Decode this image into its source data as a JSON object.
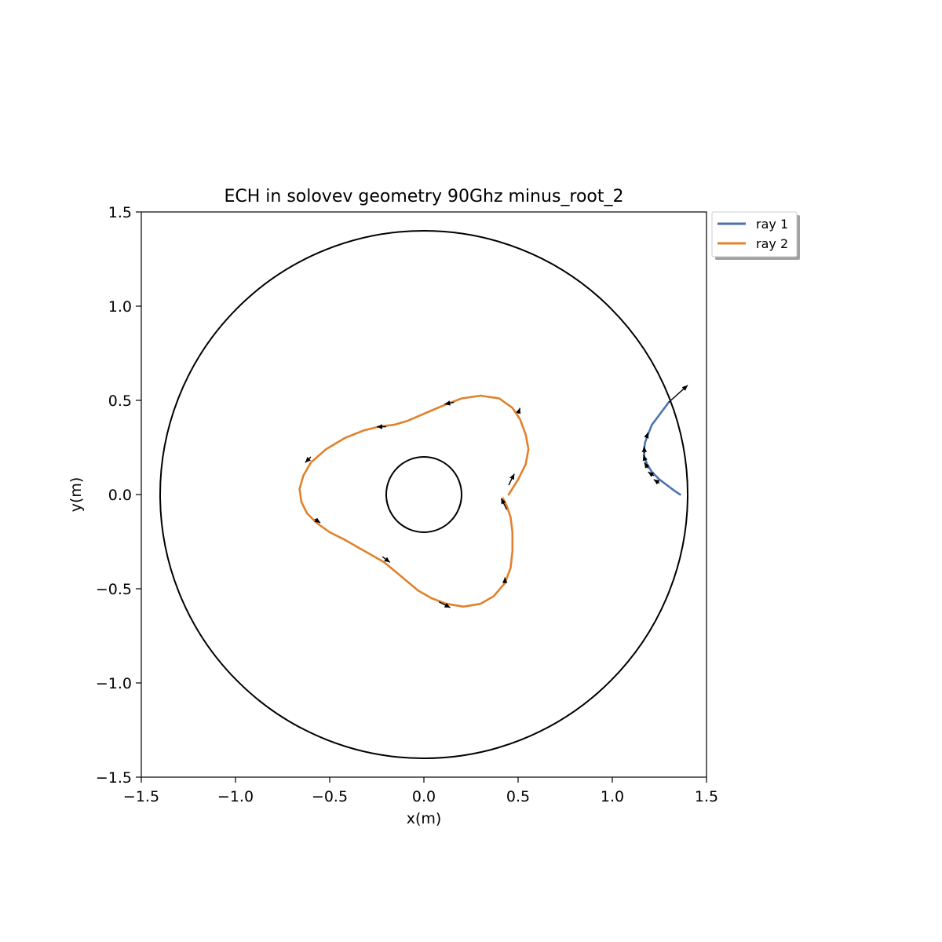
{
  "chart_data": {
    "type": "line",
    "title": "ECH in solovev geometry 90Ghz  minus_root_2",
    "xlabel": "x(m)",
    "ylabel": "y(m)",
    "xlim": [
      -1.5,
      1.5
    ],
    "ylim": [
      -1.5,
      1.5
    ],
    "xticks": [
      -1.5,
      -1.0,
      -0.5,
      0.0,
      0.5,
      1.0,
      1.5
    ],
    "yticks": [
      -1.5,
      -1.0,
      -0.5,
      0.0,
      0.5,
      1.0,
      1.5
    ],
    "xtick_labels": [
      "−1.5",
      "−1.0",
      "−0.5",
      "0.0",
      "0.5",
      "1.0",
      "1.5"
    ],
    "ytick_labels": [
      "−1.5",
      "−1.0",
      "−0.5",
      "0.0",
      "0.5",
      "1.0",
      "1.5"
    ],
    "grid": false,
    "legend_placement": "outside-top-right",
    "boundary_circles": [
      {
        "cx": 0.0,
        "cy": 0.0,
        "r": 1.4,
        "color": "#000000"
      },
      {
        "cx": 0.0,
        "cy": 0.0,
        "r": 0.2,
        "color": "#000000"
      }
    ],
    "series": [
      {
        "name": "ray 1",
        "color": "#4c72b0",
        "x": [
          1.36,
          1.33,
          1.29,
          1.25,
          1.21,
          1.185,
          1.17,
          1.168,
          1.175,
          1.19,
          1.21,
          1.24,
          1.27,
          1.3
        ],
        "y": [
          0.0,
          0.02,
          0.05,
          0.08,
          0.12,
          0.16,
          0.2,
          0.24,
          0.28,
          0.32,
          0.37,
          0.41,
          0.45,
          0.49
        ],
        "arrows": [
          {
            "x": 1.25,
            "y": 0.06,
            "dx": -0.03,
            "dy": 0.02
          },
          {
            "x": 1.22,
            "y": 0.1,
            "dx": -0.03,
            "dy": 0.02
          },
          {
            "x": 1.19,
            "y": 0.14,
            "dx": -0.02,
            "dy": 0.03
          },
          {
            "x": 1.175,
            "y": 0.18,
            "dx": -0.01,
            "dy": 0.03
          },
          {
            "x": 1.17,
            "y": 0.22,
            "dx": 0.0,
            "dy": 0.035
          },
          {
            "x": 1.18,
            "y": 0.3,
            "dx": 0.01,
            "dy": 0.03
          },
          {
            "x": 1.3,
            "y": 0.49,
            "dx": 0.1,
            "dy": 0.09
          }
        ]
      },
      {
        "name": "ray 2",
        "color": "#e1812c",
        "x": [
          0.45,
          0.5,
          0.54,
          0.555,
          0.54,
          0.51,
          0.47,
          0.4,
          0.3,
          0.2,
          0.12,
          0.05,
          -0.02,
          -0.09,
          -0.16,
          -0.24,
          -0.32,
          -0.42,
          -0.52,
          -0.6,
          -0.64,
          -0.66,
          -0.65,
          -0.62,
          -0.57,
          -0.5,
          -0.42,
          -0.35,
          -0.28,
          -0.21,
          -0.15,
          -0.09,
          -0.03,
          0.04,
          0.12,
          0.21,
          0.3,
          0.37,
          0.43,
          0.46,
          0.47,
          0.47,
          0.46,
          0.44,
          0.42
        ],
        "y": [
          0.0,
          0.08,
          0.16,
          0.24,
          0.32,
          0.4,
          0.46,
          0.51,
          0.525,
          0.51,
          0.48,
          0.45,
          0.42,
          0.39,
          0.37,
          0.36,
          0.34,
          0.3,
          0.24,
          0.17,
          0.1,
          0.03,
          -0.04,
          -0.1,
          -0.15,
          -0.2,
          -0.24,
          -0.28,
          -0.32,
          -0.36,
          -0.41,
          -0.46,
          -0.51,
          -0.55,
          -0.58,
          -0.595,
          -0.58,
          -0.54,
          -0.47,
          -0.39,
          -0.3,
          -0.2,
          -0.12,
          -0.06,
          -0.02
        ],
        "arrows": [
          {
            "x": 0.45,
            "y": 0.05,
            "dx": 0.03,
            "dy": 0.06
          },
          {
            "x": 0.5,
            "y": 0.43,
            "dx": 0.01,
            "dy": 0.03
          },
          {
            "x": 0.16,
            "y": 0.49,
            "dx": -0.05,
            "dy": -0.01
          },
          {
            "x": -0.2,
            "y": 0.36,
            "dx": -0.05,
            "dy": 0.0
          },
          {
            "x": -0.6,
            "y": 0.2,
            "dx": -0.03,
            "dy": -0.03
          },
          {
            "x": -0.58,
            "y": -0.13,
            "dx": 0.03,
            "dy": -0.02
          },
          {
            "x": -0.22,
            "y": -0.33,
            "dx": 0.04,
            "dy": -0.03
          },
          {
            "x": 0.08,
            "y": -0.57,
            "dx": 0.06,
            "dy": -0.03
          },
          {
            "x": 0.43,
            "y": -0.47,
            "dx": 0.0,
            "dy": 0.03
          },
          {
            "x": 0.44,
            "y": -0.08,
            "dx": -0.03,
            "dy": 0.06
          }
        ]
      }
    ]
  }
}
